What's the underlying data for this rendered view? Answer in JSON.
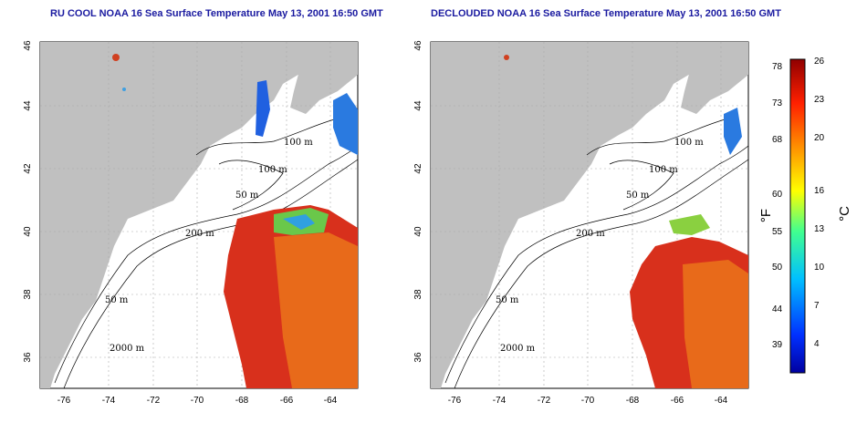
{
  "panels": [
    {
      "title": "RU COOL NOAA 16 Sea Surface Temperature May 13, 2001 16:50 GMT",
      "x_ticks": [
        "-76",
        "-74",
        "-72",
        "-70",
        "-68",
        "-66",
        "-64"
      ],
      "y_ticks": [
        "46",
        "44",
        "42",
        "40",
        "38",
        "36"
      ],
      "contour_labels": [
        "100 m",
        "100 m",
        "50 m",
        "200 m",
        "50 m",
        "2000 m"
      ]
    },
    {
      "title": "DECLOUDED NOAA 16 Sea Surface Temperature May 13, 2001 16:50 GMT",
      "x_ticks": [
        "-76",
        "-74",
        "-72",
        "-70",
        "-68",
        "-66",
        "-64"
      ],
      "y_ticks": [
        "46",
        "44",
        "42",
        "40",
        "38",
        "36"
      ],
      "contour_labels": [
        "100 m",
        "100 m",
        "50 m",
        "200 m",
        "50 m",
        "2000 m"
      ]
    }
  ],
  "colorbar": {
    "fahrenheit_label": "°F",
    "celsius_label": "°C",
    "fahrenheit_ticks": [
      "78",
      "73",
      "68",
      "60",
      "55",
      "50",
      "44",
      "39"
    ],
    "celsius_ticks": [
      "26",
      "23",
      "20",
      "16",
      "13",
      "10",
      "7",
      "4"
    ]
  },
  "colors": {
    "land": "#c0c0c0",
    "title": "#1a1aa0",
    "warm": "#d0201a",
    "cold": "#1a50e0"
  }
}
